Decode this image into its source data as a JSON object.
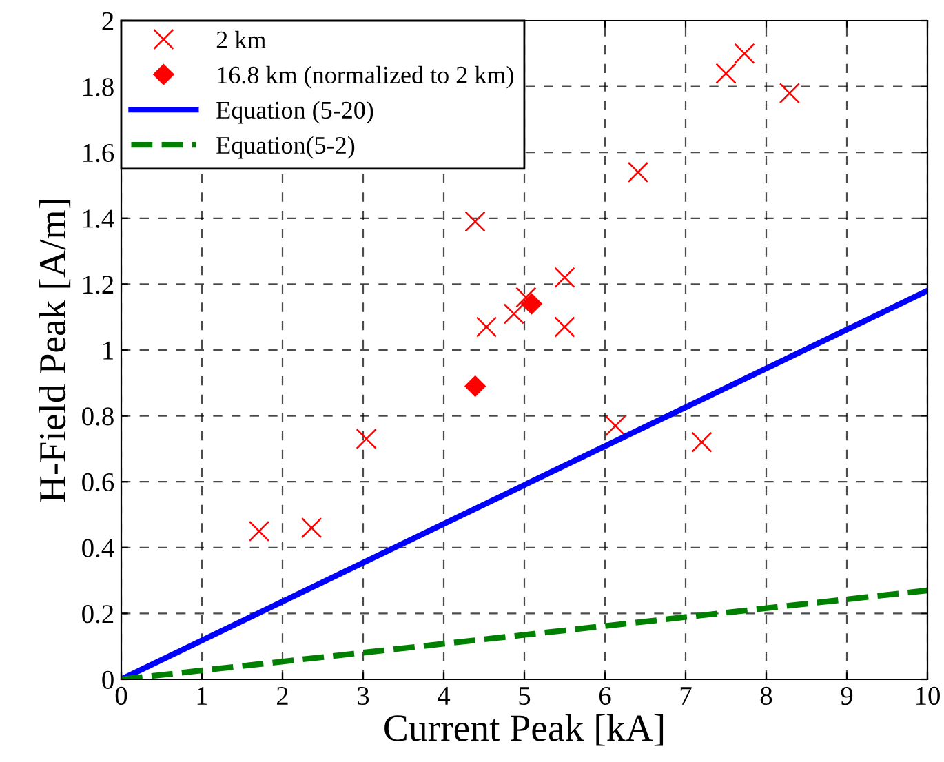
{
  "chart_data": {
    "type": "scatter",
    "xlabel": "Current Peak [kA]",
    "ylabel": "H-Field Peak [A/m]",
    "xlim": [
      0,
      10
    ],
    "ylim": [
      0,
      2
    ],
    "xticks": [
      0,
      1,
      2,
      3,
      4,
      5,
      6,
      7,
      8,
      9,
      10
    ],
    "yticks": [
      0,
      0.2,
      0.4,
      0.6,
      0.8,
      1,
      1.2,
      1.4,
      1.6,
      1.8,
      2
    ],
    "grid": true,
    "legend": "top left",
    "series": [
      {
        "name": "2 km",
        "marker": "cross",
        "color": "#ff0000",
        "x": [
          1.71,
          2.36,
          3.04,
          4.39,
          4.53,
          4.87,
          5.02,
          5.5,
          5.5,
          6.13,
          6.41,
          7.2,
          7.5,
          7.73,
          8.29
        ],
        "values": [
          0.45,
          0.46,
          0.73,
          1.39,
          1.07,
          1.11,
          1.16,
          1.22,
          1.07,
          0.77,
          1.54,
          0.72,
          1.84,
          1.9,
          1.78
        ]
      },
      {
        "name": "16.8 km (normalized to 2 km)",
        "marker": "diamond",
        "color": "#ff0000",
        "x": [
          4.39,
          5.09
        ],
        "values": [
          0.89,
          1.14
        ]
      },
      {
        "name": "Equation (5-20)",
        "type": "line",
        "line_style": "solid",
        "color": "#0000ff",
        "x": [
          0,
          10
        ],
        "values": [
          0,
          1.18
        ]
      },
      {
        "name": "Equation(5-2)",
        "type": "line",
        "line_style": "dashed",
        "color": "#008000",
        "x": [
          0,
          10
        ],
        "values": [
          0,
          0.27
        ]
      }
    ]
  }
}
